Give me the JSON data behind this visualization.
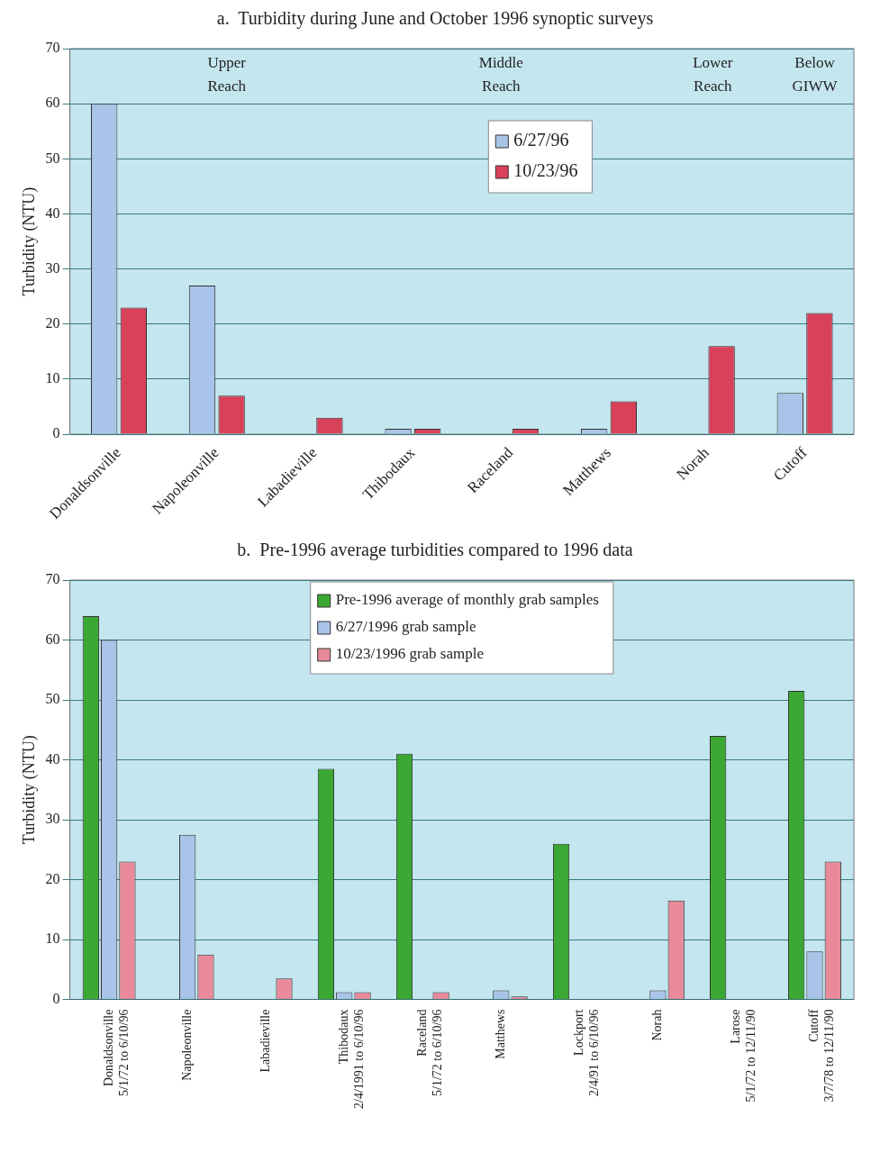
{
  "chart_data": [
    {
      "type": "bar",
      "title": "a.  Turbidity during June and October 1996 synoptic surveys",
      "ylabel": "Turbidity (NTU)",
      "categories": [
        "Donaldsonville",
        "Napoleonville",
        "Labadieville",
        "Thibodaux",
        "Raceland",
        "Matthews",
        "Norah",
        "Cutoff"
      ],
      "series": [
        {
          "name": "6/27/96",
          "color": "#a9c4e8",
          "values": [
            60,
            27,
            null,
            1,
            null,
            1,
            null,
            7.5
          ]
        },
        {
          "name": "10/23/96",
          "color": "#d9405a",
          "values": [
            23,
            7,
            3,
            1,
            1,
            6,
            16,
            22
          ]
        }
      ],
      "ylim": [
        0,
        70
      ],
      "yticks": [
        0,
        10,
        20,
        30,
        40,
        50,
        60,
        70
      ],
      "grid": "y",
      "legend": "top",
      "annotations": [
        "Upper Reach",
        "Middle Reach",
        "Lower Reach",
        "Below GIWW"
      ]
    },
    {
      "type": "bar",
      "title": "b.  Pre-1996 average turbidities compared to 1996 data",
      "ylabel": "Turbidity (NTU)",
      "categories": [
        "Donaldsonville\n5/1/72 to 6/10/96",
        "Napoleonville",
        "Labadieville",
        "Thibodaux\n2/4/1991 to 6/10/96",
        "Raceland\n5/1/72 to 6/10/96",
        "Matthews",
        "Lockport\n2/4/91 to 6/10/96",
        "Norah",
        "Larose\n5/1/72 to 12/11/90",
        "Cutoff\n3/7/78 to 12/11/90"
      ],
      "series": [
        {
          "name": "Pre-1996 average of monthly grab samples",
          "color": "#3aa832",
          "values": [
            64,
            null,
            null,
            38.5,
            41,
            null,
            26,
            null,
            44,
            51.5
          ]
        },
        {
          "name": "6/27/1996 grab sample",
          "color": "#a9c4e8",
          "values": [
            60,
            27.5,
            null,
            1.2,
            null,
            1.5,
            null,
            1.5,
            null,
            8
          ]
        },
        {
          "name": "10/23/1996 grab sample",
          "color": "#e88a9a",
          "values": [
            23,
            7.5,
            3.5,
            1.2,
            1.2,
            0.5,
            null,
            16.5,
            null,
            23
          ]
        }
      ],
      "ylim": [
        0,
        70
      ],
      "yticks": [
        0,
        10,
        20,
        30,
        40,
        50,
        60,
        70
      ],
      "grid": "y",
      "legend": "top"
    }
  ]
}
